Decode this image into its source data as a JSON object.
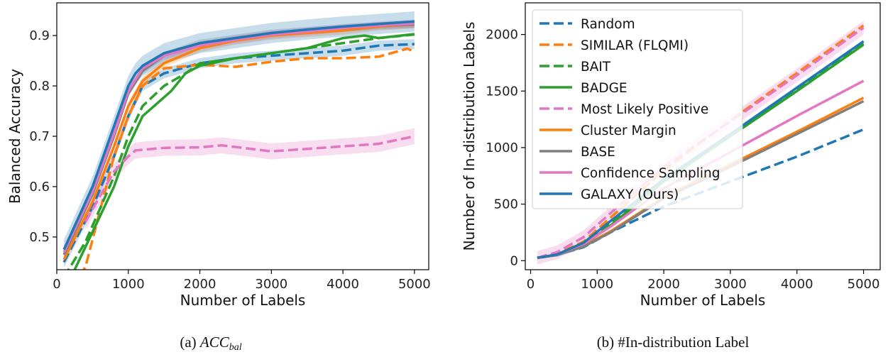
{
  "captions": {
    "a_prefix": "(a) ",
    "a_main": "ACC",
    "a_sub": "bal",
    "b": "(b) #In-distribution Label"
  },
  "chart_data": [
    {
      "type": "line",
      "xlabel": "Number of Labels",
      "ylabel": "Balanced Accuracy",
      "xlim": [
        0,
        5200
      ],
      "ylim": [
        0.435,
        0.965
      ],
      "xticks": [
        0,
        1000,
        2000,
        3000,
        4000,
        5000
      ],
      "yticks": [
        0.5,
        0.6,
        0.7,
        0.8,
        0.9
      ],
      "ytick_labels": [
        "0.5",
        "0.6",
        "0.7",
        "0.8",
        "0.9"
      ],
      "grid": false,
      "series": [
        {
          "name": "Random",
          "color": "#1f77b4",
          "dash": true,
          "band": 0.01,
          "x": [
            100,
            500,
            800,
            1000,
            1200,
            1500,
            2000,
            2500,
            3000,
            3500,
            4000,
            4500,
            5000
          ],
          "y": [
            0.45,
            0.56,
            0.66,
            0.74,
            0.8,
            0.825,
            0.845,
            0.855,
            0.86,
            0.865,
            0.87,
            0.88,
            0.883
          ]
        },
        {
          "name": "SIMILAR (FLQMI)",
          "color": "#ff7f0e",
          "dash": true,
          "band": 0.0,
          "x": [
            200,
            400,
            600,
            800,
            1000,
            1200,
            1500,
            2000,
            2500,
            3000,
            3500,
            4000,
            4500,
            4900,
            5000
          ],
          "y": [
            0.4,
            0.44,
            0.55,
            0.66,
            0.74,
            0.8,
            0.835,
            0.842,
            0.838,
            0.848,
            0.855,
            0.855,
            0.858,
            0.874,
            0.868
          ]
        },
        {
          "name": "BAIT",
          "color": "#2ca02c",
          "dash": true,
          "band": 0.0,
          "x": [
            100,
            400,
            800,
            1000,
            1200,
            1500,
            1800,
            2000,
            2500,
            3000,
            3500,
            4000,
            4500,
            5000
          ],
          "y": [
            0.42,
            0.49,
            0.62,
            0.7,
            0.76,
            0.8,
            0.825,
            0.845,
            0.855,
            0.865,
            0.875,
            0.885,
            0.895,
            0.902
          ]
        },
        {
          "name": "BADGE",
          "color": "#2ca02c",
          "dash": false,
          "band": 0.0,
          "x": [
            200,
            400,
            800,
            1000,
            1200,
            1400,
            1600,
            1800,
            2000,
            2500,
            3000,
            3500,
            4000,
            4300,
            4500,
            5000
          ],
          "y": [
            0.42,
            0.48,
            0.6,
            0.68,
            0.74,
            0.765,
            0.79,
            0.825,
            0.84,
            0.855,
            0.865,
            0.875,
            0.895,
            0.9,
            0.895,
            0.903
          ]
        },
        {
          "name": "Most Likely Positive",
          "color": "#e377c2",
          "dash": true,
          "band": 0.016,
          "x": [
            400,
            800,
            1000,
            1100,
            1500,
            2000,
            2300,
            2600,
            3000,
            3500,
            4000,
            4500,
            5000
          ],
          "y": [
            0.53,
            0.63,
            0.66,
            0.672,
            0.677,
            0.678,
            0.682,
            0.677,
            0.67,
            0.675,
            0.68,
            0.685,
            0.7
          ]
        },
        {
          "name": "Cluster Margin",
          "color": "#ff7f0e",
          "dash": false,
          "band": 0.008,
          "x": [
            100,
            500,
            800,
            1000,
            1200,
            1500,
            2000,
            2500,
            3000,
            3500,
            4000,
            4500,
            5000
          ],
          "y": [
            0.455,
            0.57,
            0.68,
            0.76,
            0.81,
            0.845,
            0.875,
            0.89,
            0.9,
            0.905,
            0.91,
            0.918,
            0.922
          ]
        },
        {
          "name": "BASE",
          "color": "#7f7f7f",
          "dash": false,
          "band": 0.007,
          "x": [
            100,
            500,
            800,
            1000,
            1200,
            1500,
            2000,
            2500,
            3000,
            3500,
            4000,
            4500,
            5000
          ],
          "y": [
            0.465,
            0.585,
            0.7,
            0.785,
            0.83,
            0.86,
            0.885,
            0.895,
            0.905,
            0.91,
            0.915,
            0.92,
            0.922
          ]
        },
        {
          "name": "Confidence Sampling",
          "color": "#e377c2",
          "dash": false,
          "band": 0.008,
          "x": [
            100,
            500,
            800,
            1000,
            1200,
            1500,
            2000,
            2500,
            3000,
            3500,
            4000,
            4500,
            5000
          ],
          "y": [
            0.47,
            0.59,
            0.705,
            0.79,
            0.835,
            0.86,
            0.88,
            0.892,
            0.902,
            0.908,
            0.915,
            0.92,
            0.924
          ]
        },
        {
          "name": "GALAXY (Ours)",
          "color": "#1f77b4",
          "dash": false,
          "band": 0.02,
          "x": [
            100,
            500,
            800,
            1000,
            1100,
            1200,
            1500,
            2000,
            2500,
            3000,
            3500,
            4000,
            4500,
            5000
          ],
          "y": [
            0.475,
            0.6,
            0.72,
            0.8,
            0.825,
            0.84,
            0.865,
            0.885,
            0.895,
            0.905,
            0.912,
            0.918,
            0.923,
            0.928
          ]
        }
      ]
    },
    {
      "type": "line",
      "xlabel": "Number of Labels",
      "ylabel": "Number of In-distribution Labels",
      "xlim": [
        -80,
        5250
      ],
      "ylim": [
        -80,
        2280
      ],
      "xticks": [
        0,
        1000,
        2000,
        3000,
        4000,
        5000
      ],
      "yticks": [
        0,
        500,
        1000,
        1500,
        2000
      ],
      "ytick_labels": [
        "0",
        "500",
        "1000",
        "1500",
        "2000"
      ],
      "grid": false,
      "legend": "top-left",
      "series": [
        {
          "name": "Random",
          "color": "#1f77b4",
          "dash": true,
          "band": 0.0,
          "x": [
            100,
            400,
            800,
            1200,
            2000,
            3000,
            4000,
            5000
          ],
          "y": [
            25,
            50,
            120,
            250,
            480,
            700,
            920,
            1160
          ]
        },
        {
          "name": "SIMILAR (FLQMI)",
          "color": "#ff7f0e",
          "dash": true,
          "band": 0.0,
          "x": [
            100,
            400,
            800,
            1200,
            2000,
            3000,
            4000,
            5000
          ],
          "y": [
            25,
            60,
            170,
            380,
            800,
            1240,
            1660,
            2080
          ]
        },
        {
          "name": "BAIT",
          "color": "#2ca02c",
          "dash": true,
          "band": 0.0,
          "x": [
            100,
            400,
            800,
            1200,
            2000,
            3000,
            4000,
            5000
          ],
          "y": [
            25,
            55,
            150,
            330,
            720,
            1120,
            1520,
            1920
          ]
        },
        {
          "name": "BADGE",
          "color": "#2ca02c",
          "dash": false,
          "band": 0.0,
          "x": [
            100,
            400,
            800,
            1200,
            2000,
            3000,
            4000,
            5000
          ],
          "y": [
            25,
            50,
            140,
            310,
            700,
            1100,
            1500,
            1910
          ]
        },
        {
          "name": "Most Likely Positive",
          "color": "#e377c2",
          "dash": true,
          "band": 60,
          "x": [
            100,
            400,
            800,
            1200,
            2000,
            3000,
            4000,
            5000
          ],
          "y": [
            25,
            75,
            210,
            420,
            830,
            1230,
            1640,
            2060
          ]
        },
        {
          "name": "Cluster Margin",
          "color": "#ff7f0e",
          "dash": false,
          "band": 0.0,
          "x": [
            100,
            400,
            800,
            1200,
            2000,
            3000,
            4000,
            5000
          ],
          "y": [
            25,
            50,
            130,
            260,
            560,
            850,
            1140,
            1440
          ]
        },
        {
          "name": "BASE",
          "color": "#7f7f7f",
          "dash": false,
          "band": 0.0,
          "x": [
            100,
            400,
            800,
            1200,
            2000,
            3000,
            4000,
            5000
          ],
          "y": [
            25,
            50,
            125,
            250,
            550,
            830,
            1120,
            1410
          ]
        },
        {
          "name": "Confidence Sampling",
          "color": "#e377c2",
          "dash": false,
          "band": 0.0,
          "x": [
            100,
            400,
            800,
            1200,
            2000,
            3000,
            4000,
            5000
          ],
          "y": [
            25,
            55,
            150,
            300,
            640,
            960,
            1280,
            1590
          ]
        },
        {
          "name": "GALAXY (Ours)",
          "color": "#1f77b4",
          "dash": false,
          "band": 0.0,
          "x": [
            100,
            400,
            800,
            1200,
            2000,
            3000,
            4000,
            5000
          ],
          "y": [
            25,
            55,
            160,
            350,
            720,
            1120,
            1530,
            1940
          ]
        }
      ]
    }
  ]
}
